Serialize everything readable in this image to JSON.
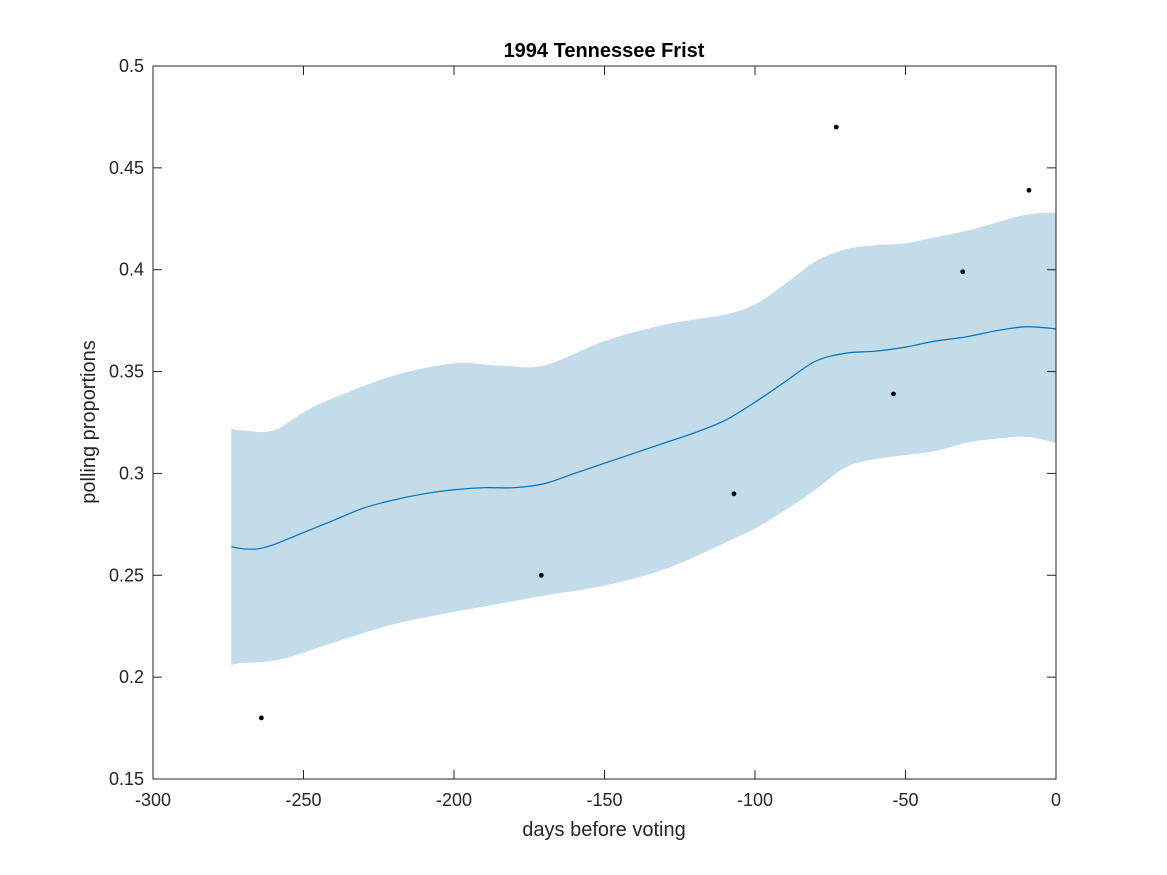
{
  "chart_data": {
    "type": "line",
    "title": "1994 Tennessee Frist",
    "xlabel": "days before voting",
    "ylabel": "polling proportions",
    "xlim": [
      -300,
      0
    ],
    "ylim": [
      0.15,
      0.5
    ],
    "xticks": [
      -300,
      -250,
      -200,
      -150,
      -100,
      -50,
      0
    ],
    "yticks": [
      0.15,
      0.2,
      0.25,
      0.3,
      0.35,
      0.4,
      0.45,
      0.5
    ],
    "xtick_labels": [
      "-300",
      "-250",
      "-200",
      "-150",
      "-100",
      "-50",
      "0"
    ],
    "ytick_labels": [
      "0.15",
      "0.2",
      "0.25",
      "0.3",
      "0.35",
      "0.4",
      "0.45",
      "0.5"
    ],
    "grid": false,
    "colors": {
      "trend_line": "#0072BD",
      "band_fill": "#c2dcea",
      "points": "#000000",
      "axes": "#262626"
    },
    "series": [
      {
        "kind": "band",
        "x": [
          -274,
          -270,
          -260,
          -250,
          -240,
          -220,
          -200,
          -185,
          -170,
          -150,
          -130,
          -110,
          -100,
          -90,
          -80,
          -70,
          -60,
          -50,
          -40,
          -30,
          -20,
          -10,
          0
        ],
        "upper": [
          0.322,
          0.321,
          0.321,
          0.33,
          0.337,
          0.348,
          0.354,
          0.353,
          0.353,
          0.365,
          0.373,
          0.378,
          0.383,
          0.393,
          0.404,
          0.41,
          0.412,
          0.413,
          0.416,
          0.419,
          0.423,
          0.427,
          0.428
        ],
        "lower": [
          0.206,
          0.207,
          0.208,
          0.212,
          0.217,
          0.226,
          0.232,
          0.236,
          0.24,
          0.245,
          0.253,
          0.266,
          0.273,
          0.282,
          0.292,
          0.303,
          0.307,
          0.309,
          0.311,
          0.315,
          0.317,
          0.318,
          0.315
        ]
      },
      {
        "kind": "line",
        "x": [
          -274,
          -270,
          -265,
          -260,
          -250,
          -240,
          -230,
          -220,
          -210,
          -200,
          -190,
          -180,
          -170,
          -160,
          -150,
          -140,
          -130,
          -120,
          -110,
          -100,
          -90,
          -80,
          -70,
          -60,
          -50,
          -40,
          -30,
          -20,
          -10,
          0
        ],
        "y": [
          0.264,
          0.263,
          0.263,
          0.265,
          0.271,
          0.277,
          0.283,
          0.287,
          0.29,
          0.292,
          0.293,
          0.293,
          0.295,
          0.3,
          0.305,
          0.31,
          0.315,
          0.32,
          0.326,
          0.335,
          0.345,
          0.355,
          0.359,
          0.36,
          0.362,
          0.365,
          0.367,
          0.37,
          0.372,
          0.371
        ]
      },
      {
        "kind": "scatter",
        "x": [
          -264,
          -171,
          -107,
          -73,
          -54,
          -31,
          -9
        ],
        "y": [
          0.18,
          0.25,
          0.29,
          0.47,
          0.339,
          0.399,
          0.439
        ]
      }
    ]
  }
}
